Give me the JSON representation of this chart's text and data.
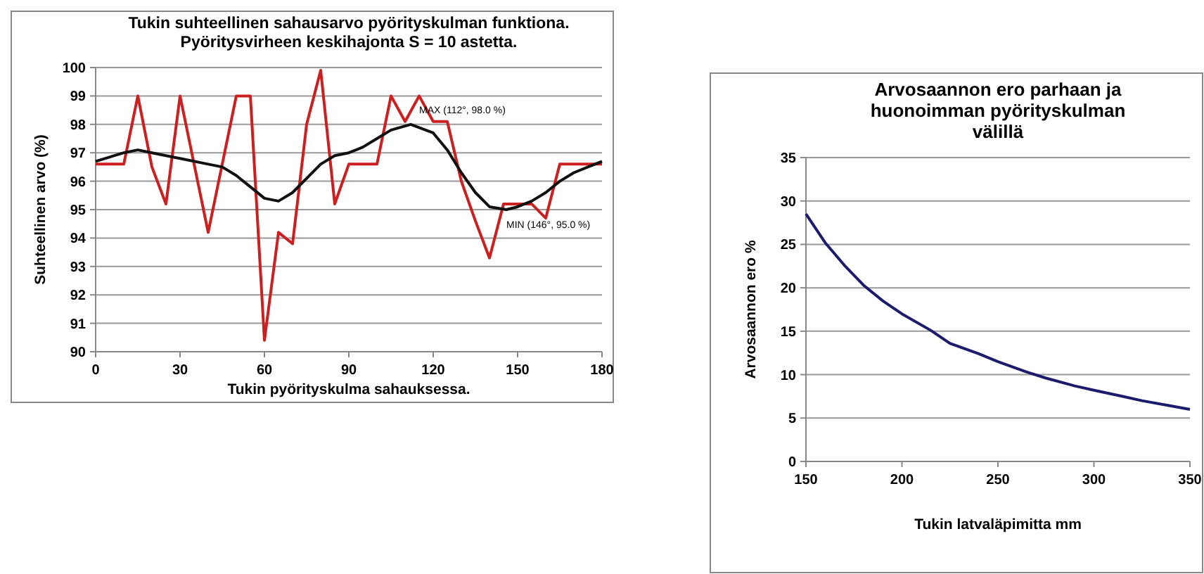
{
  "chart_data": [
    {
      "type": "line",
      "title": "Tukin suhteellinen sahausarvo pyörityskulman funktiona.\nPyöritysvirheen keskihajonta S = 10 astetta.",
      "xlabel": "Tukin pyörityskulma sahauksessa.",
      "ylabel": "Suhteellinen arvo (%)",
      "xlim": [
        0,
        180
      ],
      "xticks": [
        0,
        30,
        60,
        90,
        120,
        150,
        180
      ],
      "ylim": [
        90,
        100
      ],
      "yticks": [
        90,
        91,
        92,
        93,
        94,
        95,
        96,
        97,
        98,
        99,
        100
      ],
      "grid": "y",
      "marker": "none",
      "line_style": "solid",
      "series": [
        {
          "color": "#cc1f1f",
          "x": [
            0,
            5,
            10,
            15,
            20,
            25,
            30,
            35,
            40,
            45,
            50,
            55,
            60,
            65,
            70,
            75,
            80,
            85,
            90,
            95,
            100,
            105,
            110,
            115,
            120,
            125,
            130,
            135,
            140,
            145,
            150,
            155,
            160,
            165,
            170,
            175,
            180
          ],
          "values": [
            96.6,
            96.6,
            96.6,
            99.0,
            96.5,
            95.2,
            99.0,
            96.6,
            94.2,
            96.6,
            99.0,
            99.0,
            90.4,
            94.2,
            93.8,
            98.0,
            99.9,
            95.2,
            96.6,
            96.6,
            96.6,
            99.0,
            98.1,
            99.0,
            98.1,
            98.1,
            96.0,
            94.6,
            93.3,
            95.2,
            95.2,
            95.2,
            94.7,
            96.6,
            96.6,
            96.6,
            96.6
          ]
        },
        {
          "color": "#111111",
          "x": [
            0,
            10,
            15,
            20,
            30,
            40,
            45,
            50,
            55,
            60,
            65,
            70,
            75,
            80,
            85,
            90,
            95,
            100,
            105,
            112,
            120,
            125,
            130,
            135,
            140,
            146,
            150,
            155,
            160,
            165,
            170,
            175,
            180
          ],
          "values": [
            96.7,
            97.0,
            97.1,
            97.0,
            96.8,
            96.6,
            96.5,
            96.2,
            95.8,
            95.4,
            95.3,
            95.6,
            96.1,
            96.6,
            96.9,
            97.0,
            97.2,
            97.5,
            97.8,
            98.0,
            97.7,
            97.1,
            96.3,
            95.6,
            95.1,
            95.0,
            95.1,
            95.3,
            95.6,
            96.0,
            96.3,
            96.5,
            96.7
          ]
        }
      ],
      "annotations": [
        {
          "text": "MAX (112°, 98.0 %)",
          "x": 112,
          "y": 98.0
        },
        {
          "text": "MIN (146°, 95.0 %)",
          "x": 146,
          "y": 95.0
        }
      ]
    },
    {
      "type": "line",
      "title": "Arvosaannon ero parhaan ja\nhuonoimman pyörityskulman\nvälillä",
      "xlabel": "Tukin latvaläpimitta  mm",
      "ylabel": "Arvosaannon ero  %",
      "xlim": [
        150,
        350
      ],
      "xticks": [
        150,
        200,
        250,
        300,
        350
      ],
      "ylim": [
        0,
        35
      ],
      "yticks": [
        0,
        5,
        10,
        15,
        20,
        25,
        30,
        35
      ],
      "grid": "y",
      "marker": "none",
      "line_style": "solid",
      "series": [
        {
          "color": "#1c1c6e",
          "x": [
            150,
            160,
            170,
            180,
            190,
            200,
            215,
            225,
            240,
            250,
            265,
            275,
            290,
            300,
            315,
            325,
            340,
            350
          ],
          "values": [
            28.5,
            25.2,
            22.6,
            20.3,
            18.5,
            17.0,
            15.1,
            13.6,
            12.4,
            11.5,
            10.3,
            9.6,
            8.7,
            8.2,
            7.5,
            7.0,
            6.4,
            6.0
          ]
        }
      ]
    }
  ]
}
